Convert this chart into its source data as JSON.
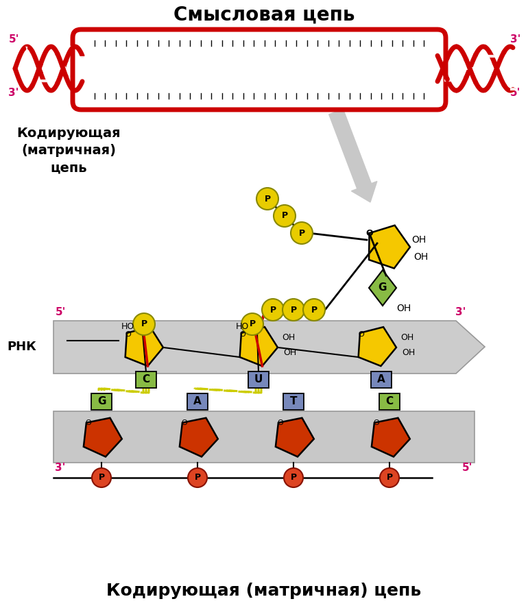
{
  "title": "Смысловая цепь",
  "bottom_title": "Кодирующая (матричная) цепь",
  "left_label_line1": "Кодирующая",
  "left_label_line2": "(матричная)",
  "left_label_line3": "цепь",
  "rnk_label": "РНК",
  "bg_color": "#ffffff",
  "dna_color": "#cc0000",
  "rna_arrow_color": "#daa000",
  "sugar_yellow": "#f5c800",
  "sugar_red": "#cc3300",
  "phosphate_yellow": "#e8cc00",
  "phosphate_red": "#dd4422",
  "base_green": "#88bb44",
  "base_blue": "#7788bb",
  "base_green_dna": "#88bb44",
  "base_blue_dna": "#7788bb",
  "rna_band_color": "#cccccc",
  "dna_band_color": "#bbbbbb",
  "label_color": "#cc0066",
  "text_color": "#000000",
  "arrow_gray": "#aaaaaa",
  "bond_color": "#cccc00"
}
